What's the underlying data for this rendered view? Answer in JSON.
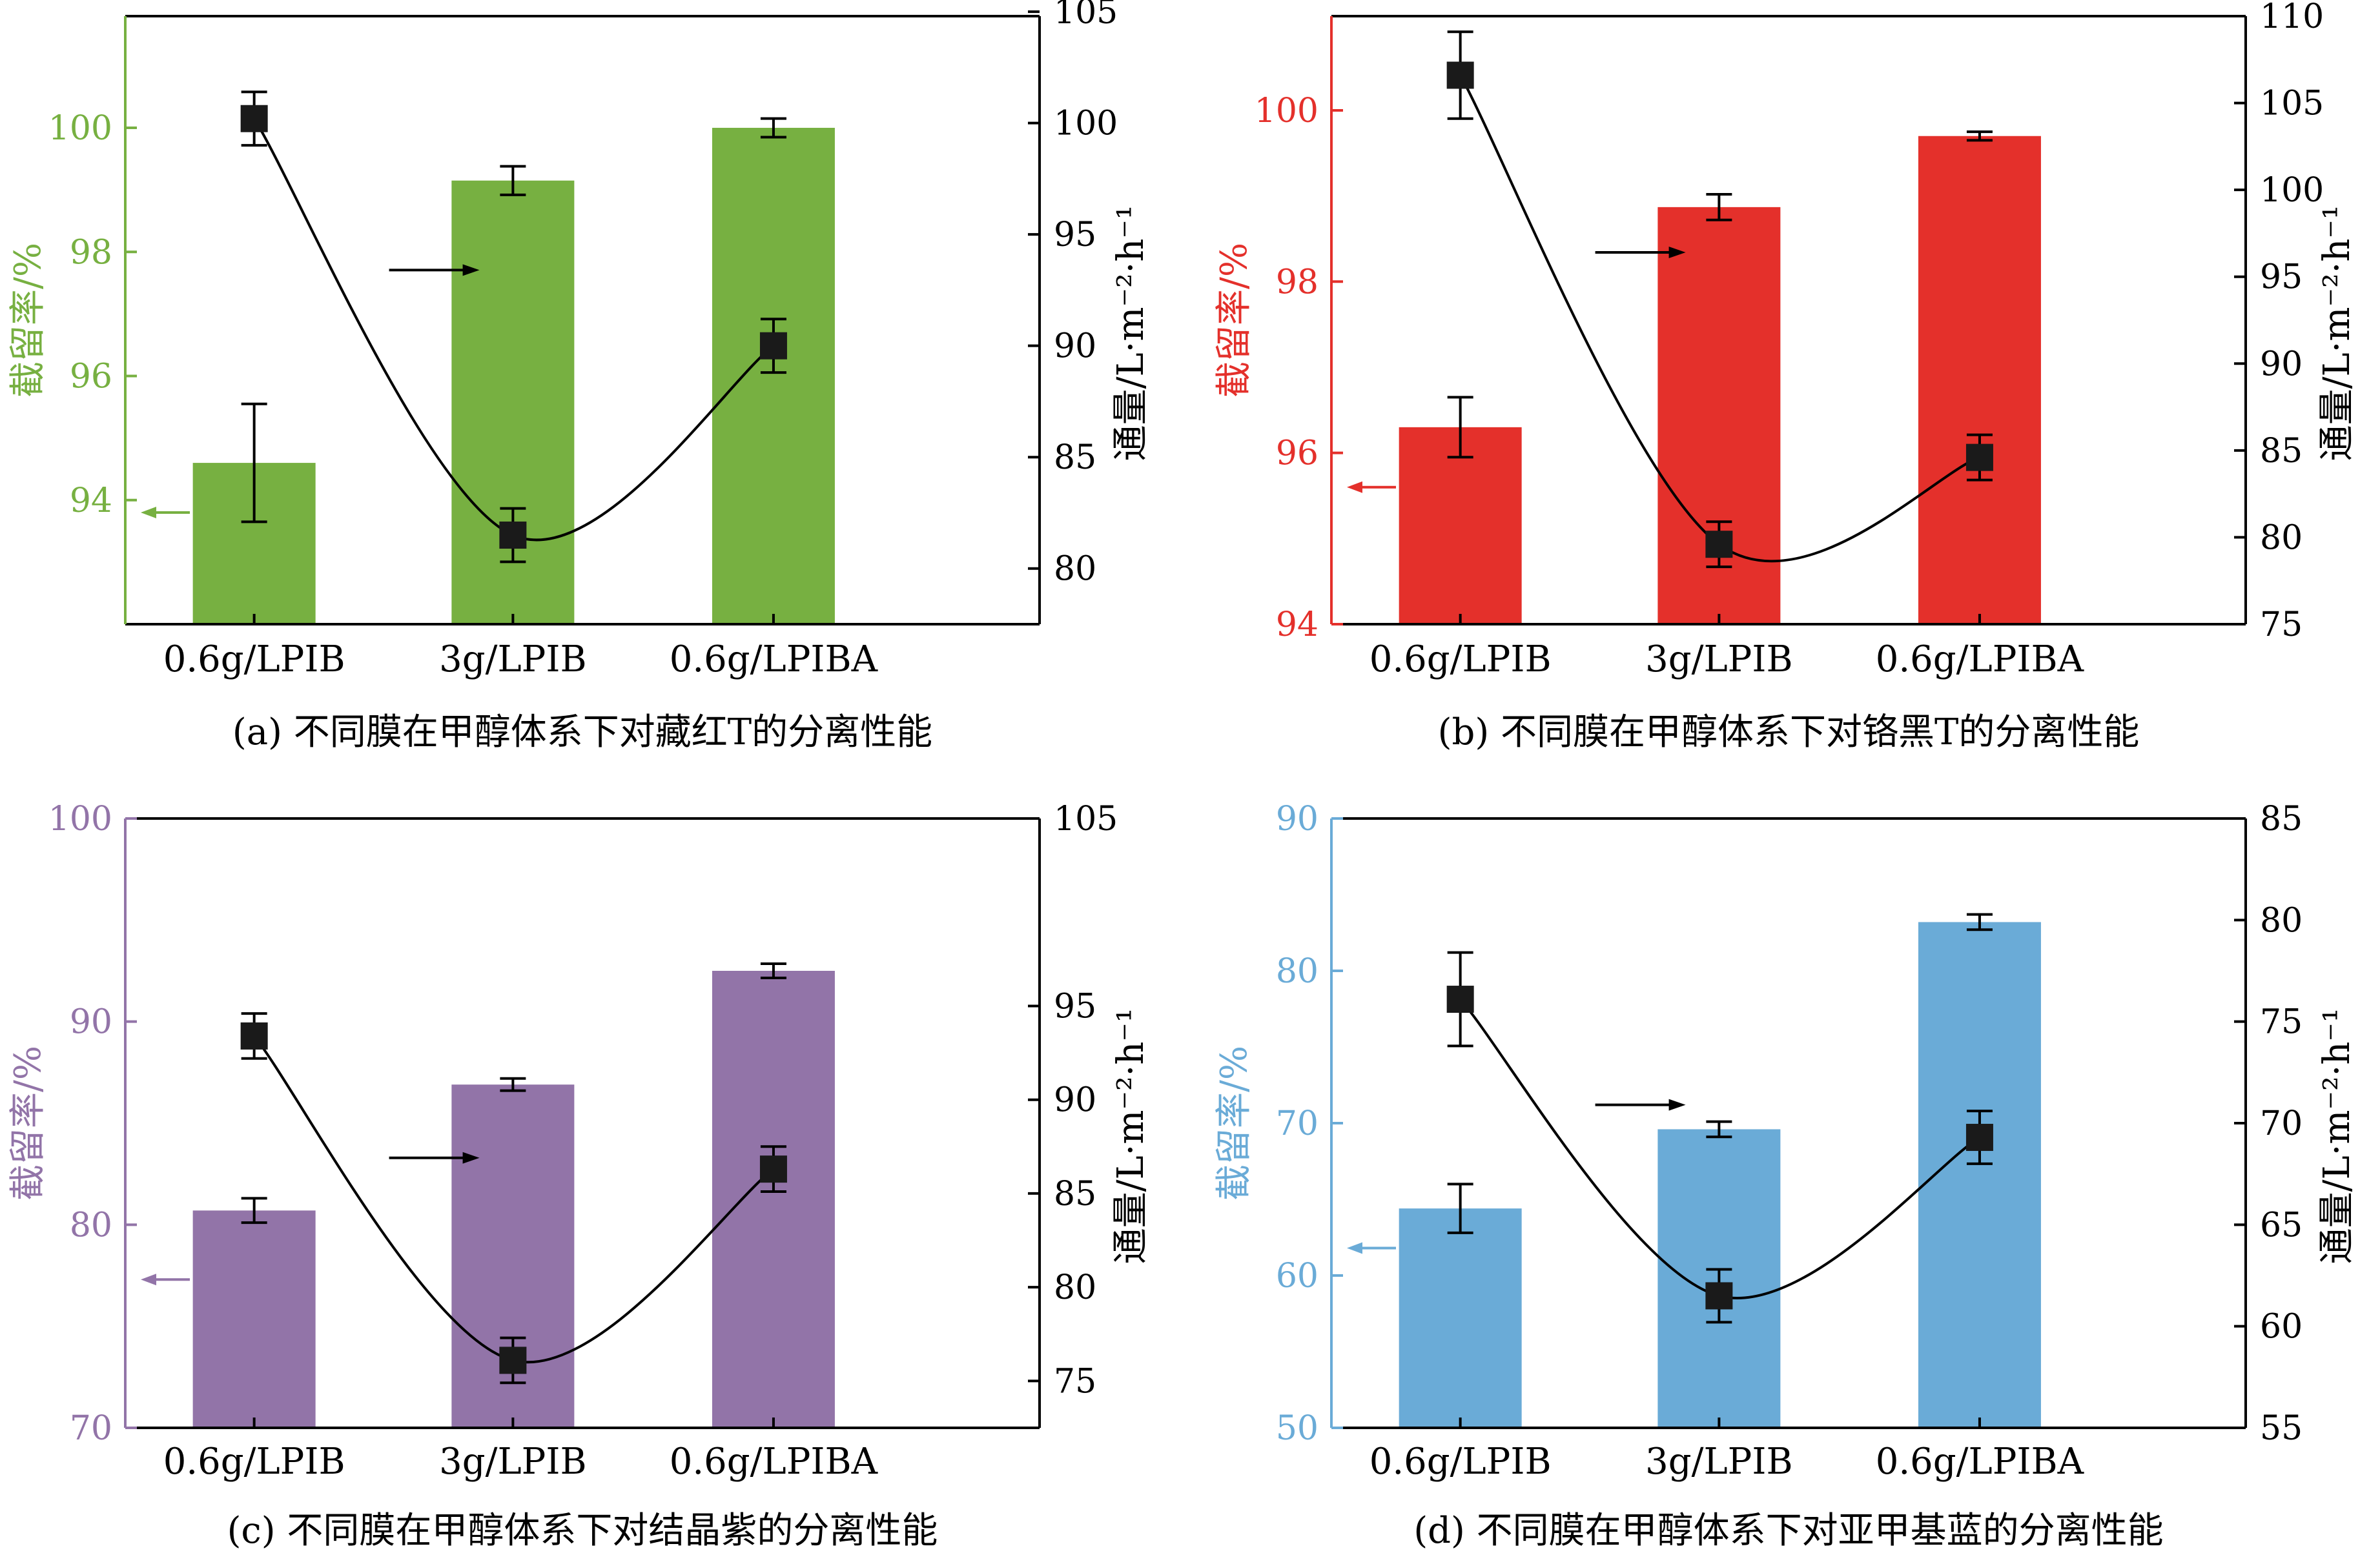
{
  "chart_data": [
    {
      "id": "a",
      "type": "bar+line",
      "caption": "(a) 不同膜在甲醇体系下对藏红T的分离性能",
      "bar_color": "#77b041",
      "left_axis_color": "#77b041",
      "left_axis_label": "截留率/%",
      "right_axis_label": "通量/L·m⁻²·h⁻¹",
      "left_range": [
        92,
        101.8
      ],
      "left_ticks": [
        94,
        96,
        98,
        100
      ],
      "right_range": [
        77.5,
        104.8
      ],
      "right_ticks": [
        80,
        85,
        90,
        95,
        100,
        105
      ],
      "categories": [
        "0.6g/LPIB",
        "3g/LPIB",
        "0.6g/LPIBA"
      ],
      "series": [
        {
          "name": "截留率",
          "axis": "left",
          "kind": "bar",
          "values": [
            94.6,
            99.15,
            100.0
          ],
          "errors": [
            0.95,
            0.23,
            0.15
          ]
        },
        {
          "name": "通量",
          "axis": "right",
          "kind": "line",
          "values": [
            100.2,
            81.5,
            90.0
          ],
          "errors": [
            1.2,
            1.2,
            1.2
          ]
        }
      ],
      "arrows": {
        "left": {
          "y": 93.8,
          "dir": "left"
        },
        "right": {
          "y": 93.4,
          "dir": "right"
        }
      }
    },
    {
      "id": "b",
      "type": "bar+line",
      "caption": "(b) 不同膜在甲醇体系下对铬黑T的分离性能",
      "bar_color": "#e4302b",
      "left_axis_color": "#e4302b",
      "left_axis_label": "截留率/%",
      "right_axis_label": "通量/L·m⁻²·h⁻¹",
      "left_range": [
        94,
        101.1
      ],
      "left_ticks": [
        94,
        96,
        98,
        100
      ],
      "right_range": [
        75,
        110
      ],
      "right_ticks": [
        75,
        80,
        85,
        90,
        95,
        100,
        105,
        110
      ],
      "categories": [
        "0.6g/LPIB",
        "3g/LPIB",
        "0.6g/LPIBA"
      ],
      "series": [
        {
          "name": "截留率",
          "axis": "left",
          "kind": "bar",
          "values": [
            96.3,
            98.87,
            99.7
          ],
          "errors": [
            0.35,
            0.15,
            0.05
          ]
        },
        {
          "name": "通量",
          "axis": "right",
          "kind": "line",
          "values": [
            106.6,
            79.6,
            84.6
          ],
          "errors": [
            2.5,
            1.3,
            1.3
          ]
        }
      ],
      "arrows": {
        "left": {
          "y": 95.6,
          "dir": "left"
        },
        "right": {
          "y": 96.4,
          "dir": "right"
        }
      }
    },
    {
      "id": "c",
      "type": "bar+line",
      "caption": "(c) 不同膜在甲醇体系下对结晶紫的分离性能",
      "bar_color": "#9274a8",
      "left_axis_color": "#9274a8",
      "left_axis_label": "截留率/%",
      "right_axis_label": "通量/L·m⁻²·h⁻¹",
      "left_range": [
        70,
        100
      ],
      "left_ticks": [
        70,
        80,
        90,
        100
      ],
      "right_range": [
        72.5,
        105
      ],
      "right_ticks": [
        75,
        80,
        85,
        90,
        95,
        105
      ],
      "categories": [
        "0.6g/LPIB",
        "3g/LPIB",
        "0.6g/LPIBA"
      ],
      "series": [
        {
          "name": "截留率",
          "axis": "left",
          "kind": "bar",
          "values": [
            80.7,
            86.9,
            92.5
          ],
          "errors": [
            0.6,
            0.3,
            0.35
          ]
        },
        {
          "name": "通量",
          "axis": "right",
          "kind": "line",
          "values": [
            93.4,
            76.1,
            86.3
          ],
          "errors": [
            1.2,
            1.2,
            1.2
          ]
        }
      ],
      "arrows": {
        "left": {
          "y": 77.3,
          "dir": "left"
        },
        "right": {
          "y": 86.9,
          "dir": "right"
        }
      }
    },
    {
      "id": "d",
      "type": "bar+line",
      "caption": "(d) 不同膜在甲醇体系下对亚甲基蓝的分离性能",
      "bar_color": "#6aabd7",
      "left_axis_color": "#6aabd7",
      "left_axis_label": "截留率/%",
      "right_axis_label": "通量/L·m⁻²·h⁻¹",
      "left_range": [
        50,
        90
      ],
      "left_ticks": [
        50,
        60,
        70,
        80,
        90
      ],
      "right_range": [
        55,
        85
      ],
      "right_ticks": [
        55,
        60,
        65,
        70,
        75,
        80,
        85
      ],
      "categories": [
        "0.6g/LPIB",
        "3g/LPIB",
        "0.6g/LPIBA"
      ],
      "series": [
        {
          "name": "截留率",
          "axis": "left",
          "kind": "bar",
          "values": [
            64.4,
            69.6,
            83.2
          ],
          "errors": [
            1.6,
            0.5,
            0.5
          ]
        },
        {
          "name": "通量",
          "axis": "right",
          "kind": "line",
          "values": [
            76.1,
            61.5,
            69.3
          ],
          "errors": [
            2.3,
            1.3,
            1.3
          ]
        }
      ],
      "arrows": {
        "left": {
          "y": 61.8,
          "dir": "left"
        },
        "right": {
          "y": 70.9,
          "dir": "right"
        }
      }
    }
  ]
}
